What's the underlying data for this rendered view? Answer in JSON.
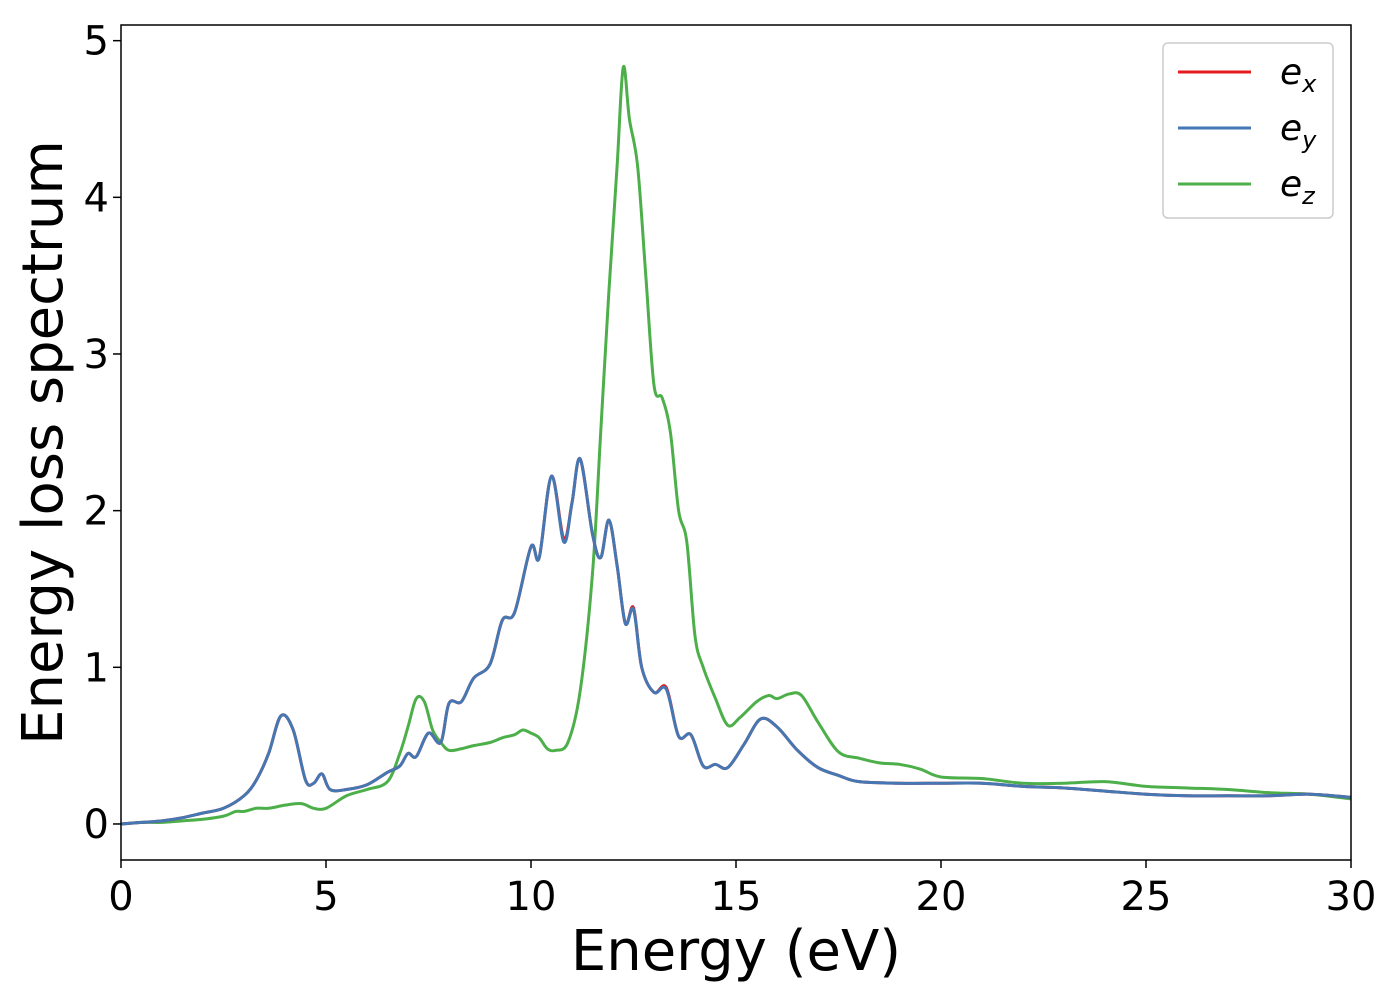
{
  "chart_data": {
    "type": "line",
    "title": "",
    "xlabel": "Energy (eV)",
    "ylabel": "Energy loss spectrum",
    "xlim": [
      0,
      30
    ],
    "ylim": [
      -0.23,
      5.1
    ],
    "xticks": [
      0,
      5,
      10,
      15,
      20,
      25,
      30
    ],
    "yticks": [
      0,
      1,
      2,
      3,
      4,
      5
    ],
    "grid": false,
    "legend_position": "top-right",
    "series": [
      {
        "name": "e",
        "subscript": "x",
        "color": "#e41a1c",
        "x": [
          0,
          0.5,
          1,
          1.5,
          2,
          2.5,
          3,
          3.3,
          3.6,
          3.9,
          4.2,
          4.5,
          4.7,
          4.9,
          5.1,
          5.5,
          6,
          6.5,
          6.8,
          7,
          7.2,
          7.5,
          7.8,
          8,
          8.3,
          8.6,
          9,
          9.3,
          9.6,
          10,
          10.2,
          10.5,
          10.8,
          11,
          11.2,
          11.5,
          11.7,
          11.9,
          12.1,
          12.3,
          12.5,
          12.7,
          13,
          13.3,
          13.6,
          13.9,
          14.2,
          14.5,
          14.8,
          15.2,
          15.6,
          16,
          16.5,
          17,
          17.5,
          18,
          19,
          20,
          21,
          22,
          23,
          24,
          25,
          26,
          27,
          28,
          29,
          30
        ],
        "y": [
          0,
          0.01,
          0.02,
          0.04,
          0.07,
          0.1,
          0.18,
          0.28,
          0.45,
          0.69,
          0.6,
          0.28,
          0.26,
          0.32,
          0.22,
          0.22,
          0.25,
          0.33,
          0.37,
          0.45,
          0.43,
          0.58,
          0.52,
          0.77,
          0.78,
          0.93,
          1.02,
          1.3,
          1.35,
          1.77,
          1.7,
          2.22,
          1.82,
          2.05,
          2.33,
          1.85,
          1.7,
          1.94,
          1.65,
          1.28,
          1.38,
          1.0,
          0.84,
          0.87,
          0.56,
          0.57,
          0.37,
          0.38,
          0.36,
          0.51,
          0.67,
          0.62,
          0.47,
          0.36,
          0.31,
          0.27,
          0.26,
          0.26,
          0.26,
          0.24,
          0.23,
          0.21,
          0.19,
          0.18,
          0.18,
          0.18,
          0.19,
          0.17
        ]
      },
      {
        "name": "e",
        "subscript": "y",
        "color": "#4577b3",
        "x": [
          0,
          0.5,
          1,
          1.5,
          2,
          2.5,
          3,
          3.3,
          3.6,
          3.9,
          4.2,
          4.5,
          4.7,
          4.9,
          5.1,
          5.5,
          6,
          6.5,
          6.8,
          7,
          7.2,
          7.5,
          7.8,
          8,
          8.3,
          8.6,
          9,
          9.3,
          9.6,
          10,
          10.2,
          10.5,
          10.8,
          11,
          11.2,
          11.5,
          11.7,
          11.9,
          12.1,
          12.3,
          12.5,
          12.7,
          13,
          13.3,
          13.6,
          13.9,
          14.2,
          14.5,
          14.8,
          15.2,
          15.6,
          16,
          16.5,
          17,
          17.5,
          18,
          19,
          20,
          21,
          22,
          23,
          24,
          25,
          26,
          27,
          28,
          29,
          30
        ],
        "y": [
          0,
          0.01,
          0.02,
          0.04,
          0.07,
          0.1,
          0.18,
          0.28,
          0.45,
          0.69,
          0.6,
          0.28,
          0.26,
          0.32,
          0.22,
          0.22,
          0.25,
          0.33,
          0.37,
          0.45,
          0.43,
          0.58,
          0.52,
          0.77,
          0.78,
          0.93,
          1.02,
          1.3,
          1.35,
          1.77,
          1.7,
          2.22,
          1.8,
          2.05,
          2.33,
          1.85,
          1.7,
          1.94,
          1.65,
          1.28,
          1.37,
          1.0,
          0.84,
          0.86,
          0.56,
          0.57,
          0.37,
          0.38,
          0.36,
          0.51,
          0.67,
          0.62,
          0.47,
          0.36,
          0.31,
          0.27,
          0.26,
          0.26,
          0.26,
          0.24,
          0.23,
          0.21,
          0.19,
          0.18,
          0.18,
          0.18,
          0.19,
          0.17
        ]
      },
      {
        "name": "e",
        "subscript": "z",
        "color": "#4daf4a",
        "x": [
          0,
          0.5,
          1,
          1.5,
          2,
          2.5,
          2.8,
          3,
          3.3,
          3.6,
          4,
          4.4,
          4.7,
          5,
          5.5,
          6,
          6.5,
          6.8,
          7,
          7.2,
          7.4,
          7.6,
          7.8,
          8,
          8.3,
          8.6,
          9,
          9.3,
          9.6,
          9.8,
          10,
          10.2,
          10.4,
          10.6,
          10.9,
          11.2,
          11.5,
          11.7,
          11.9,
          12.1,
          12.25,
          12.4,
          12.6,
          12.8,
          13,
          13.2,
          13.4,
          13.6,
          13.8,
          14,
          14.2,
          14.5,
          14.8,
          15.1,
          15.5,
          15.8,
          16,
          16.3,
          16.6,
          17,
          17.5,
          18,
          18.5,
          19,
          19.5,
          20,
          21,
          22,
          23,
          24,
          25,
          26,
          27,
          28,
          29,
          30
        ],
        "y": [
          0,
          0.01,
          0.01,
          0.02,
          0.03,
          0.05,
          0.08,
          0.08,
          0.1,
          0.1,
          0.12,
          0.13,
          0.1,
          0.1,
          0.18,
          0.22,
          0.27,
          0.45,
          0.62,
          0.8,
          0.78,
          0.6,
          0.52,
          0.47,
          0.48,
          0.5,
          0.52,
          0.55,
          0.57,
          0.6,
          0.58,
          0.55,
          0.48,
          0.47,
          0.52,
          0.85,
          1.6,
          2.5,
          3.4,
          4.2,
          4.83,
          4.5,
          4.2,
          3.5,
          2.8,
          2.72,
          2.5,
          2.0,
          1.8,
          1.2,
          1.0,
          0.8,
          0.63,
          0.68,
          0.78,
          0.82,
          0.8,
          0.83,
          0.82,
          0.65,
          0.46,
          0.42,
          0.39,
          0.38,
          0.35,
          0.3,
          0.29,
          0.26,
          0.26,
          0.27,
          0.24,
          0.23,
          0.22,
          0.2,
          0.19,
          0.16
        ]
      }
    ]
  }
}
